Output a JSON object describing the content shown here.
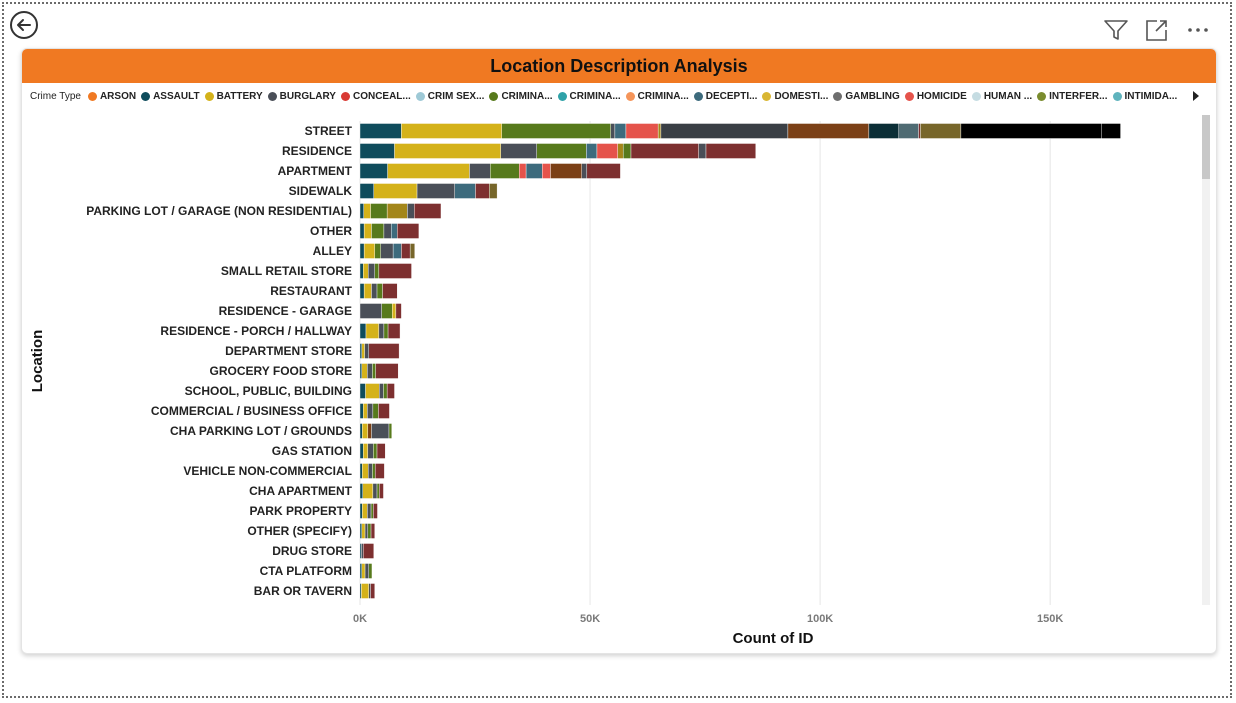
{
  "page": {
    "back_icon": "back-arrow-circle-icon",
    "toolbar_icons": [
      "filter-icon",
      "focus-mode-icon",
      "more-options-icon"
    ]
  },
  "visual": {
    "title": "Location Description Analysis",
    "title_bar_color": "#f07922"
  },
  "legend": {
    "title": "Crime Type",
    "items": [
      {
        "label": "ARSON",
        "color": "#f07922"
      },
      {
        "label": "ASSAULT",
        "color": "#0f4c5c"
      },
      {
        "label": "BATTERY",
        "color": "#d4b21a"
      },
      {
        "label": "BURGLARY",
        "color": "#4a4f58"
      },
      {
        "label": "CONCEAL...",
        "color": "#d93a34"
      },
      {
        "label": "CRIM SEX...",
        "color": "#9ec9d6"
      },
      {
        "label": "CRIMINA...",
        "color": "#577a1c"
      },
      {
        "label": "CRIMINA...",
        "color": "#2fa2a8"
      },
      {
        "label": "CRIMINA...",
        "color": "#f5955a"
      },
      {
        "label": "DECEPTI...",
        "color": "#3d6b7d"
      },
      {
        "label": "DOMESTI...",
        "color": "#d9b632"
      },
      {
        "label": "GAMBLING",
        "color": "#6e6e6e"
      },
      {
        "label": "HOMICIDE",
        "color": "#e5534b"
      },
      {
        "label": "HUMAN ...",
        "color": "#c5dce2"
      },
      {
        "label": "INTERFER...",
        "color": "#7a8c2e"
      },
      {
        "label": "INTIMIDA...",
        "color": "#5fb3bd"
      }
    ],
    "next_icon": "chevron-right-icon"
  },
  "chart_data": {
    "type": "bar",
    "orientation": "horizontal",
    "stacked": true,
    "title": "Location Description Analysis",
    "xlabel": "Count of ID",
    "ylabel": "Location",
    "xlim": [
      0,
      183000
    ],
    "x_ticks": [
      0,
      50000,
      100000,
      150000
    ],
    "x_tick_labels": [
      "0K",
      "50K",
      "100K",
      "150K"
    ],
    "grid": true,
    "legend_position": "top",
    "categories": [
      "STREET",
      "RESIDENCE",
      "APARTMENT",
      "SIDEWALK",
      "PARKING LOT / GARAGE (NON RESIDENTIAL)",
      "OTHER",
      "ALLEY",
      "SMALL RETAIL STORE",
      "RESTAURANT",
      "RESIDENCE - GARAGE",
      "RESIDENCE - PORCH / HALLWAY",
      "DEPARTMENT STORE",
      "GROCERY FOOD STORE",
      "SCHOOL, PUBLIC, BUILDING",
      "COMMERCIAL / BUSINESS OFFICE",
      "CHA PARKING LOT / GROUNDS",
      "GAS STATION",
      "VEHICLE NON-COMMERCIAL",
      "CHA APARTMENT",
      "PARK PROPERTY",
      "OTHER (SPECIFY)",
      "DRUG STORE",
      "CTA PLATFORM",
      "BAR OR TAVERN"
    ],
    "series_colors": [
      "#0f4c5c",
      "#d4b21a",
      "#577a1c",
      "#4a4f58",
      "#3d6b7d",
      "#e5534b",
      "#a3861a",
      "#3a3f45",
      "#7b4016",
      "#0b2e36",
      "#4f6b73",
      "#7d3030",
      "#77662a"
    ],
    "bars": [
      {
        "location": "STREET",
        "segments": [
          [
            0,
            9000
          ],
          [
            1,
            21800
          ],
          [
            2,
            23700
          ],
          [
            3,
            900
          ],
          [
            4,
            2400
          ],
          [
            5,
            7000
          ],
          [
            6,
            600
          ],
          [
            7,
            27600
          ],
          [
            8,
            17600
          ],
          [
            9,
            6500
          ],
          [
            10,
            4300
          ],
          [
            11,
            400
          ],
          [
            12,
            8800
          ],
          [
            13,
            30500
          ],
          [
            14,
            4200
          ]
        ]
      },
      {
        "location": "RESIDENCE",
        "segments": [
          [
            0,
            7500
          ],
          [
            1,
            23100
          ],
          [
            3,
            7800
          ],
          [
            2,
            10800
          ],
          [
            4,
            2300
          ],
          [
            5,
            4500
          ],
          [
            6,
            1200
          ],
          [
            2,
            1700
          ],
          [
            11,
            14700
          ],
          [
            3,
            1600
          ],
          [
            11,
            10800
          ]
        ]
      },
      {
        "location": "APARTMENT",
        "segments": [
          [
            0,
            6000
          ],
          [
            1,
            17800
          ],
          [
            3,
            4500
          ],
          [
            2,
            6300
          ],
          [
            5,
            1500
          ],
          [
            4,
            3500
          ],
          [
            5,
            1800
          ],
          [
            8,
            6800
          ],
          [
            3,
            1100
          ],
          [
            11,
            7300
          ]
        ]
      },
      {
        "location": "SIDEWALK",
        "segments": [
          [
            0,
            3000
          ],
          [
            1,
            9400
          ],
          [
            3,
            8200
          ],
          [
            4,
            4500
          ],
          [
            11,
            3000
          ],
          [
            12,
            1700
          ]
        ]
      },
      {
        "location": "PARKING LOT / GARAGE (NON RESIDENTIAL)",
        "segments": [
          [
            0,
            800
          ],
          [
            1,
            1500
          ],
          [
            2,
            3600
          ],
          [
            6,
            4400
          ],
          [
            3,
            1500
          ],
          [
            11,
            5800
          ]
        ]
      },
      {
        "location": "OTHER",
        "segments": [
          [
            0,
            900
          ],
          [
            1,
            1600
          ],
          [
            2,
            2700
          ],
          [
            3,
            1600
          ],
          [
            4,
            1300
          ],
          [
            11,
            4700
          ]
        ]
      },
      {
        "location": "ALLEY",
        "segments": [
          [
            0,
            900
          ],
          [
            1,
            2300
          ],
          [
            2,
            1300
          ],
          [
            3,
            2700
          ],
          [
            4,
            1800
          ],
          [
            11,
            1900
          ],
          [
            12,
            1000
          ]
        ]
      },
      {
        "location": "SMALL RETAIL STORE",
        "segments": [
          [
            0,
            700
          ],
          [
            1,
            1100
          ],
          [
            3,
            1400
          ],
          [
            2,
            900
          ],
          [
            11,
            7100
          ]
        ]
      },
      {
        "location": "RESTAURANT",
        "segments": [
          [
            0,
            900
          ],
          [
            1,
            1600
          ],
          [
            3,
            1200
          ],
          [
            2,
            1200
          ],
          [
            11,
            3200
          ]
        ]
      },
      {
        "location": "RESIDENCE - GARAGE",
        "segments": [
          [
            3,
            4700
          ],
          [
            2,
            2300
          ],
          [
            1,
            800
          ],
          [
            11,
            1200
          ]
        ]
      },
      {
        "location": "RESIDENCE - PORCH / HALLWAY",
        "segments": [
          [
            0,
            1300
          ],
          [
            1,
            2800
          ],
          [
            3,
            1100
          ],
          [
            2,
            900
          ],
          [
            11,
            2600
          ]
        ]
      },
      {
        "location": "DEPARTMENT STORE",
        "segments": [
          [
            0,
            400
          ],
          [
            1,
            600
          ],
          [
            3,
            900
          ],
          [
            11,
            6600
          ]
        ]
      },
      {
        "location": "GROCERY FOOD STORE",
        "segments": [
          [
            0,
            400
          ],
          [
            1,
            1200
          ],
          [
            3,
            1100
          ],
          [
            2,
            700
          ],
          [
            11,
            4900
          ]
        ]
      },
      {
        "location": "SCHOOL, PUBLIC, BUILDING",
        "segments": [
          [
            0,
            1200
          ],
          [
            1,
            3000
          ],
          [
            3,
            900
          ],
          [
            2,
            800
          ],
          [
            11,
            1600
          ]
        ]
      },
      {
        "location": "COMMERCIAL / BUSINESS OFFICE",
        "segments": [
          [
            0,
            700
          ],
          [
            1,
            900
          ],
          [
            3,
            1200
          ],
          [
            2,
            1200
          ],
          [
            11,
            2400
          ]
        ]
      },
      {
        "location": "CHA PARKING LOT / GROUNDS",
        "segments": [
          [
            0,
            500
          ],
          [
            1,
            1200
          ],
          [
            8,
            800
          ],
          [
            3,
            3800
          ],
          [
            2,
            600
          ]
        ]
      },
      {
        "location": "GAS STATION",
        "segments": [
          [
            0,
            700
          ],
          [
            1,
            1000
          ],
          [
            3,
            1200
          ],
          [
            2,
            800
          ],
          [
            11,
            1800
          ]
        ]
      },
      {
        "location": "VEHICLE NON-COMMERCIAL",
        "segments": [
          [
            0,
            500
          ],
          [
            1,
            1300
          ],
          [
            3,
            900
          ],
          [
            2,
            600
          ],
          [
            11,
            2000
          ]
        ]
      },
      {
        "location": "CHA APARTMENT",
        "segments": [
          [
            0,
            600
          ],
          [
            1,
            2200
          ],
          [
            3,
            900
          ],
          [
            2,
            500
          ],
          [
            11,
            900
          ]
        ]
      },
      {
        "location": "PARK PROPERTY",
        "segments": [
          [
            0,
            500
          ],
          [
            1,
            1100
          ],
          [
            3,
            800
          ],
          [
            2,
            500
          ],
          [
            11,
            900
          ]
        ]
      },
      {
        "location": "OTHER (SPECIFY)",
        "segments": [
          [
            0,
            400
          ],
          [
            1,
            700
          ],
          [
            3,
            600
          ],
          [
            2,
            700
          ],
          [
            11,
            800
          ]
        ]
      },
      {
        "location": "DRUG STORE",
        "segments": [
          [
            0,
            300
          ],
          [
            3,
            400
          ],
          [
            11,
            2300
          ]
        ]
      },
      {
        "location": "CTA PLATFORM",
        "segments": [
          [
            0,
            400
          ],
          [
            1,
            700
          ],
          [
            3,
            800
          ],
          [
            2,
            700
          ]
        ]
      },
      {
        "location": "BAR OR TAVERN",
        "segments": [
          [
            0,
            300
          ],
          [
            1,
            1600
          ],
          [
            3,
            400
          ],
          [
            11,
            900
          ]
        ]
      }
    ]
  }
}
